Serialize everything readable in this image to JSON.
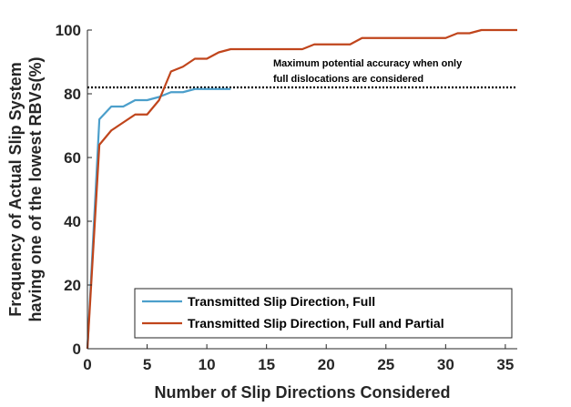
{
  "chart_data": {
    "type": "line",
    "title": "",
    "xlabel": "Number of Slip Directions Considered",
    "ylabel": [
      "Frequency of Actual Slip System",
      "having one of the lowest RBVs(%)"
    ],
    "xlim": [
      0,
      36
    ],
    "ylim": [
      0,
      100
    ],
    "xticks": [
      0,
      5,
      10,
      15,
      20,
      25,
      30,
      35
    ],
    "yticks": [
      0,
      20,
      40,
      60,
      80,
      100
    ],
    "grid": false,
    "legend_position": "bottom-right",
    "annotation": {
      "lines": [
        "Maximum potential accuracy when only",
        "full dislocations are considered"
      ],
      "reference_y": 82
    },
    "series": [
      {
        "name": "Transmitted Slip Direction, Full",
        "color": "#4c9fcb",
        "x": [
          0,
          1,
          2,
          3,
          4,
          5,
          6,
          7,
          8,
          9,
          10,
          11,
          12
        ],
        "y": [
          0,
          72,
          76,
          76,
          78,
          78,
          79,
          80.5,
          80.5,
          81.5,
          81.5,
          81.5,
          81.5
        ]
      },
      {
        "name": "Transmitted Slip Direction, Full and Partial",
        "color": "#c0451c",
        "x": [
          0,
          1,
          2,
          3,
          4,
          5,
          6,
          7,
          8,
          9,
          10,
          11,
          12,
          13,
          14,
          15,
          16,
          17,
          18,
          19,
          20,
          21,
          22,
          23,
          24,
          25,
          26,
          27,
          28,
          29,
          30,
          31,
          32,
          33,
          34,
          35,
          36
        ],
        "y": [
          0,
          64,
          68.5,
          71,
          73.5,
          73.5,
          78,
          87,
          88.5,
          91,
          91,
          93,
          94,
          94,
          94,
          94,
          94,
          94,
          94,
          95.5,
          95.5,
          95.5,
          95.5,
          97.5,
          97.5,
          97.5,
          97.5,
          97.5,
          97.5,
          97.5,
          97.5,
          99,
          99,
          100,
          100,
          100,
          100
        ]
      }
    ]
  }
}
